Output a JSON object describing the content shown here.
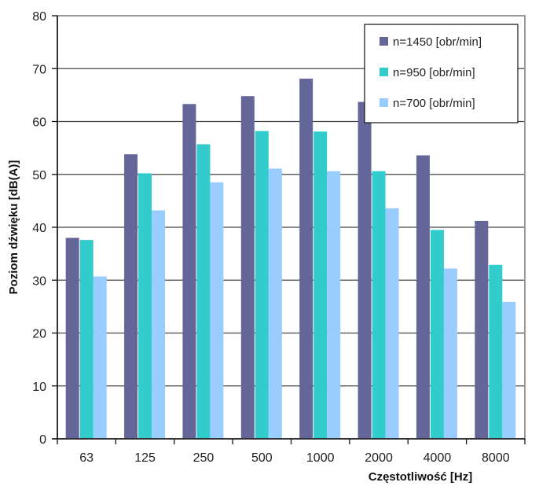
{
  "chart_data": {
    "type": "bar",
    "title": "",
    "xlabel": "Częstotliwość [Hz]",
    "ylabel": "Poziom dźwięku [dB(A)]",
    "ylim": [
      0,
      80
    ],
    "yticks": [
      0,
      10,
      20,
      30,
      40,
      50,
      60,
      70,
      80
    ],
    "grid": true,
    "legend_position": "top-right",
    "categories": [
      "63",
      "125",
      "250",
      "500",
      "1000",
      "2000",
      "4000",
      "8000"
    ],
    "series": [
      {
        "name": "n=1450 [obr/min]",
        "color": "#646699",
        "values": [
          38.0,
          53.8,
          63.3,
          64.8,
          68.1,
          63.7,
          53.6,
          41.2
        ]
      },
      {
        "name": "n=950 [obr/min]",
        "color": "#33CCCC",
        "values": [
          37.6,
          50.2,
          55.7,
          58.2,
          58.1,
          50.6,
          39.5,
          32.9
        ]
      },
      {
        "name": "n=700 [obr/min]",
        "color": "#99CCFF",
        "values": [
          30.7,
          43.2,
          48.5,
          51.1,
          50.6,
          43.6,
          32.2,
          25.9
        ]
      }
    ]
  }
}
